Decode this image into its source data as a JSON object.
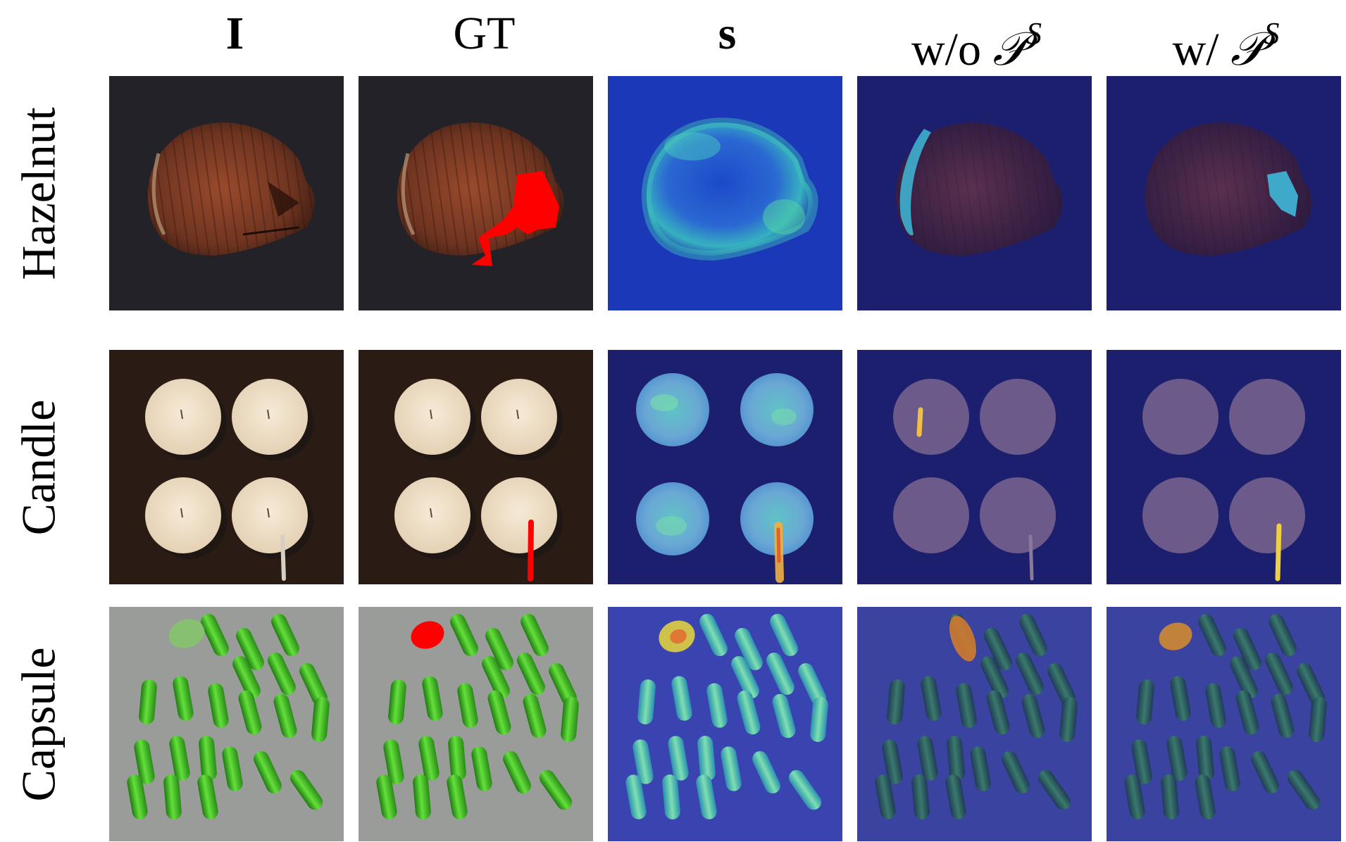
{
  "columns": {
    "input": "I",
    "gt": "GT",
    "score": "s",
    "without_prefix": "w/o",
    "with_prefix": "w/",
    "prompt_symbol": "𝒫",
    "prompt_superscript": "S"
  },
  "rows": {
    "hazelnut": "Hazelnut",
    "candle": "Candle",
    "capsule": "Capsule"
  },
  "colors": {
    "gt_mask": "#ff0000",
    "overlay_navy": "#1c1f6e",
    "heat_blue": "#1f3fc8",
    "heat_cyan": "#36b4c8",
    "heat_yellow": "#f0d040",
    "capsule_green": "#3fc12a",
    "hazelnut_shell": "#7a3a24",
    "candle_wax": "#efe0c8"
  }
}
